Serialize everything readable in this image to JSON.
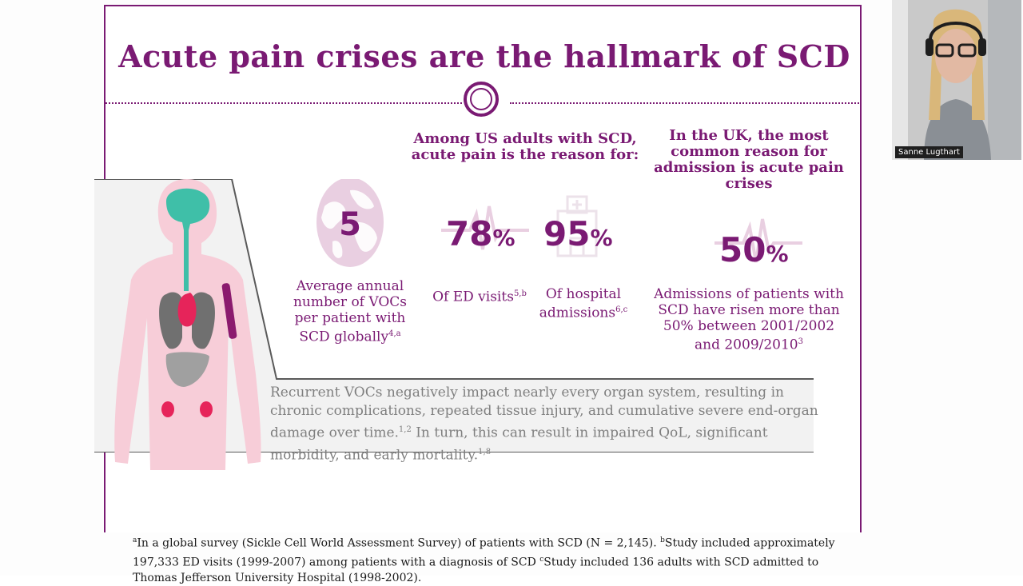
{
  "slide": {
    "title": "Acute pain crises are the hallmark of SCD",
    "us_heading": "Among US adults with SCD, acute pain is the reason for:",
    "uk_heading": "In the UK, the most common reason for admission is acute pain crises",
    "stats": [
      {
        "value": "5",
        "unit": "",
        "caption": "Average annual number of VOCs per patient with SCD globally",
        "refs": "4,a",
        "icon": "globe-icon"
      },
      {
        "value": "78",
        "unit": "%",
        "caption": "Of ED visits",
        "refs": "5,b",
        "icon": "heartbeat-icon"
      },
      {
        "value": "95",
        "unit": "%",
        "caption": "Of hospital admissions",
        "refs": "6,c",
        "icon": "hospital-icon"
      },
      {
        "value": "50",
        "unit": "%",
        "caption": "Admissions of patients with SCD have risen more than 50% between 2001/2002 and 2009/2010",
        "refs": "3",
        "icon": "heartbeat-icon"
      }
    ],
    "organ_text": {
      "part1": "Recurrent VOCs negatively impact nearly every organ system, resulting in chronic complications, repeated tissue injury, and cumulative severe end-organ damage over time.",
      "ref1": "1,2",
      "part2": " In turn, this can result in impaired QoL, significant morbidity, and early mortality.",
      "ref2": "1,8"
    },
    "footnote": {
      "a_mark": "a",
      "a_text": "In a global survey (Sickle Cell World Assessment Survey) of patients with SCD (N = 2,145). ",
      "b_mark": "b",
      "b_text": "Study included approximately 197,333 ED visits (1999-2007) among patients with a diagnosis of SCD ",
      "c_mark": "c",
      "c_text": "Study included 136 adults with SCD admitted to Thomas Jefferson University Hospital (1998-2002)."
    }
  },
  "video": {
    "participant_name": "Sanne Lugthart"
  },
  "colors": {
    "accent": "#7a1a73",
    "body_text": "#7f7f7f",
    "band": "#f2f2f2",
    "body_pink": "#f7cdd8",
    "brain_teal": "#3fbfa8"
  }
}
